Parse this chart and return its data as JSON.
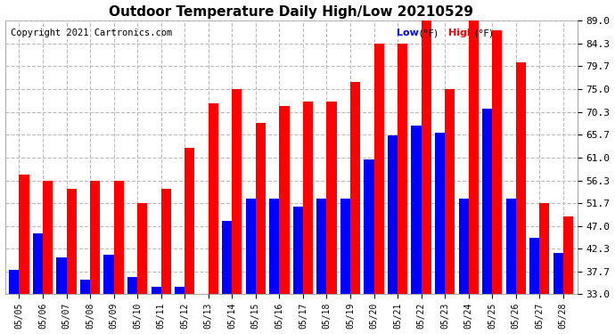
{
  "title": "Outdoor Temperature Daily High/Low 20210529",
  "copyright": "Copyright 2021 Cartronics.com",
  "dates": [
    "05/05",
    "05/06",
    "05/07",
    "05/08",
    "05/09",
    "05/10",
    "05/11",
    "05/12",
    "05/13",
    "05/14",
    "05/15",
    "05/16",
    "05/17",
    "05/18",
    "05/19",
    "05/20",
    "05/21",
    "05/22",
    "05/23",
    "05/24",
    "05/25",
    "05/26",
    "05/27",
    "05/28"
  ],
  "highs": [
    57.5,
    56.3,
    54.5,
    56.3,
    56.3,
    51.7,
    54.5,
    63.0,
    72.0,
    75.0,
    68.0,
    71.5,
    72.5,
    72.5,
    76.5,
    84.3,
    84.3,
    89.0,
    75.0,
    89.0,
    87.0,
    80.5,
    51.7,
    49.0
  ],
  "lows": [
    38.0,
    45.5,
    40.5,
    36.0,
    41.0,
    36.5,
    34.5,
    34.5,
    33.0,
    48.0,
    52.5,
    52.5,
    51.0,
    52.5,
    52.5,
    60.5,
    65.5,
    67.5,
    66.0,
    52.5,
    71.0,
    52.5,
    44.5,
    41.5
  ],
  "high_color": "#ff0000",
  "low_color": "#0000ff",
  "bg_color": "#ffffff",
  "grid_color": "#bbbbbb",
  "ylim_min": 33.0,
  "ylim_max": 89.0,
  "yticks": [
    33.0,
    37.7,
    42.3,
    47.0,
    51.7,
    56.3,
    61.0,
    65.7,
    70.3,
    75.0,
    79.7,
    84.3,
    89.0
  ],
  "bar_width": 0.42,
  "figwidth": 6.9,
  "figheight": 3.75,
  "dpi": 100
}
